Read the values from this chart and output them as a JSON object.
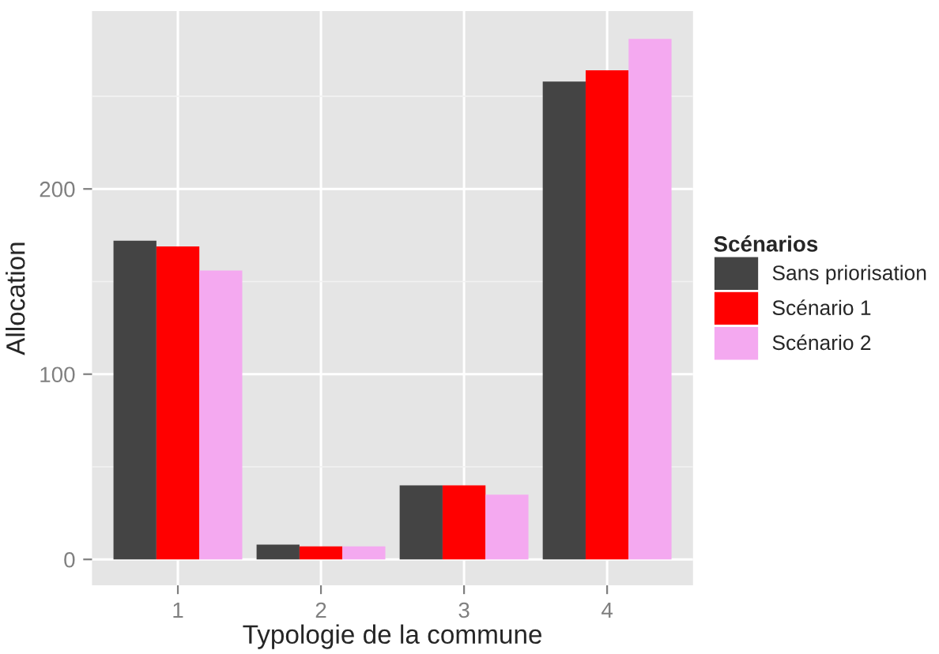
{
  "chart_data": {
    "type": "bar",
    "xlabel": "Typologie de la commune",
    "ylabel": "Allocation",
    "legend_title": "Scénarios",
    "categories": [
      "1",
      "2",
      "3",
      "4"
    ],
    "series": [
      {
        "name": "Sans priorisation",
        "color": "#444444",
        "values": [
          172,
          8,
          40,
          258
        ]
      },
      {
        "name": "Scénario 1",
        "color": "#ff0000",
        "values": [
          169,
          7,
          40,
          264
        ]
      },
      {
        "name": "Scénario 2",
        "color": "#f4a9f0",
        "values": [
          156,
          7,
          35,
          281
        ]
      }
    ],
    "ylim": [
      -14,
      296
    ],
    "yticks": [
      0,
      100,
      200
    ],
    "grid": true,
    "legend": "right"
  }
}
